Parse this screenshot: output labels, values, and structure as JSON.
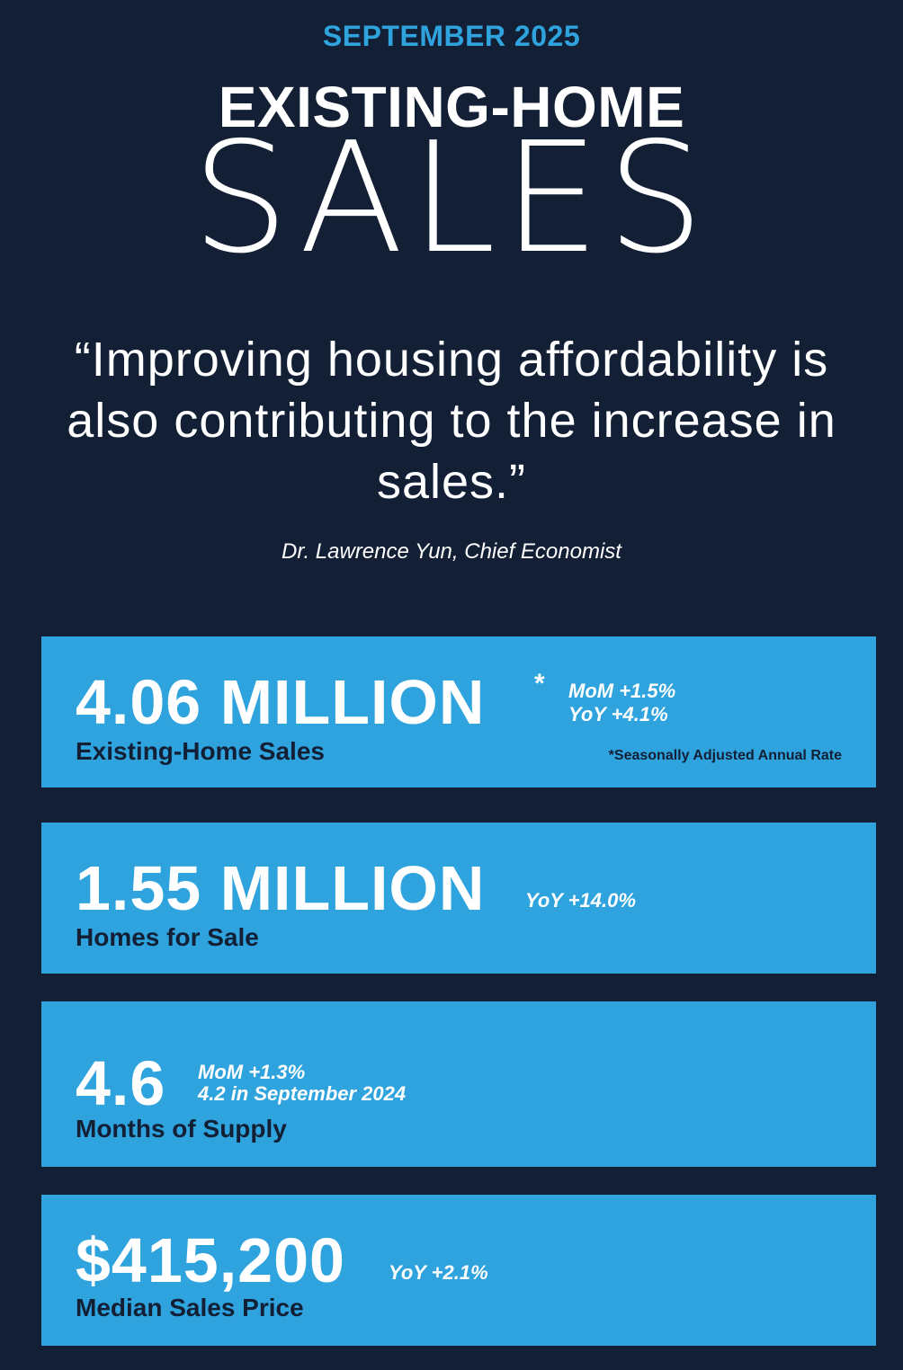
{
  "header": {
    "date": "SEPTEMBER 2025",
    "title_top": "EXISTING-HOME",
    "title_main": "SALES"
  },
  "quote": {
    "text": "“Improving housing affordability is also contributing to the increase in sales.”",
    "attribution": "Dr. Lawrence Yun, Chief Economist"
  },
  "stats": [
    {
      "value": "4.06 MILLION",
      "asterisk": "*",
      "label": "Existing-Home Sales",
      "notes": [
        "MoM +1.5%",
        "YoY +4.1%"
      ],
      "footnote": "*Seasonally Adjusted Annual Rate"
    },
    {
      "value": "1.55 MILLION",
      "label": "Homes for Sale",
      "notes": [
        "YoY +14.0%"
      ]
    },
    {
      "value": "4.6",
      "label": "Months of Supply",
      "notes": [
        "MoM +1.3%",
        "4.2 in September 2024"
      ]
    },
    {
      "value": "$415,200",
      "label": "Median Sales Price",
      "notes": [
        "YoY +2.1%"
      ]
    }
  ],
  "colors": {
    "background": "#121f35",
    "accent": "#2fa3de",
    "text_light": "#ffffff",
    "text_dark": "#121f35"
  }
}
